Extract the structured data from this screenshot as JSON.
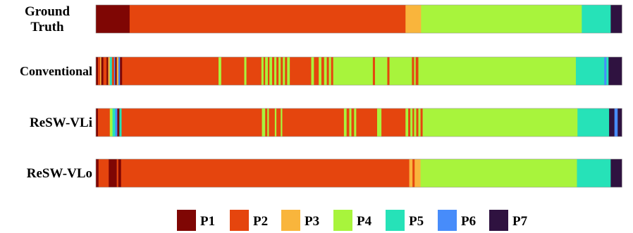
{
  "chart_data": {
    "type": "bar",
    "title": "",
    "xlabel": "",
    "ylabel": "",
    "xlim": [
      0,
      100
    ],
    "units": "percent of sequence",
    "legend": {
      "placement": "bottom-center",
      "entries": [
        {
          "label": "P1",
          "color": "#7f0604"
        },
        {
          "label": "P2",
          "color": "#e5450e"
        },
        {
          "label": "P3",
          "color": "#f9b53c"
        },
        {
          "label": "P4",
          "color": "#a8f43c"
        },
        {
          "label": "P5",
          "color": "#26e2b8"
        },
        {
          "label": "P6",
          "color": "#478cfa"
        },
        {
          "label": "P7",
          "color": "#2f1240"
        }
      ]
    },
    "rows": [
      {
        "label_lines": [
          "Ground",
          "Truth"
        ],
        "segments": [
          [
            0,
            6.3,
            "P1"
          ],
          [
            6.3,
            57.8,
            "P2"
          ],
          [
            57.8,
            60.7,
            "P3"
          ],
          [
            60.7,
            90.7,
            "P4"
          ],
          [
            90.7,
            96.1,
            "P5"
          ],
          [
            96.1,
            98.2,
            "P7"
          ]
        ]
      },
      {
        "label_lines": [
          "Conventional"
        ],
        "segments": [
          [
            0,
            0.4,
            "P1"
          ],
          [
            0.4,
            0.8,
            "P2"
          ],
          [
            0.8,
            1.0,
            "P3"
          ],
          [
            1.0,
            1.4,
            "P1"
          ],
          [
            1.4,
            2.0,
            "P2"
          ],
          [
            2.0,
            2.3,
            "P1"
          ],
          [
            2.3,
            2.6,
            "P3"
          ],
          [
            2.6,
            3.0,
            "P5"
          ],
          [
            3.0,
            3.4,
            "P2"
          ],
          [
            3.4,
            3.6,
            "P6"
          ],
          [
            3.6,
            3.9,
            "P1"
          ],
          [
            3.9,
            4.2,
            "P3"
          ],
          [
            4.2,
            4.5,
            "P6"
          ],
          [
            4.5,
            4.9,
            "P1"
          ],
          [
            4.9,
            22.9,
            "P2"
          ],
          [
            22.9,
            23.4,
            "P4"
          ],
          [
            23.4,
            27.7,
            "P2"
          ],
          [
            27.7,
            28.1,
            "P4"
          ],
          [
            28.1,
            30.9,
            "P2"
          ],
          [
            30.9,
            31.3,
            "P4"
          ],
          [
            31.3,
            31.6,
            "P2"
          ],
          [
            31.6,
            32.1,
            "P4"
          ],
          [
            32.1,
            32.4,
            "P2"
          ],
          [
            32.4,
            32.9,
            "P4"
          ],
          [
            32.9,
            33.3,
            "P2"
          ],
          [
            33.3,
            33.7,
            "P4"
          ],
          [
            33.7,
            34.1,
            "P2"
          ],
          [
            34.1,
            34.5,
            "P4"
          ],
          [
            34.5,
            34.9,
            "P2"
          ],
          [
            34.9,
            35.3,
            "P4"
          ],
          [
            35.3,
            35.7,
            "P2"
          ],
          [
            35.7,
            36.2,
            "P4"
          ],
          [
            36.2,
            40.2,
            "P2"
          ],
          [
            40.2,
            40.7,
            "P4"
          ],
          [
            40.7,
            41.6,
            "P2"
          ],
          [
            41.6,
            42.1,
            "P4"
          ],
          [
            42.1,
            42.6,
            "P2"
          ],
          [
            42.6,
            43.1,
            "P4"
          ],
          [
            43.1,
            43.5,
            "P2"
          ],
          [
            43.5,
            43.9,
            "P4"
          ],
          [
            43.9,
            44.3,
            "P2"
          ],
          [
            44.3,
            51.7,
            "P4"
          ],
          [
            51.7,
            52.1,
            "P2"
          ],
          [
            52.1,
            54.4,
            "P4"
          ],
          [
            54.4,
            54.8,
            "P2"
          ],
          [
            54.8,
            59.0,
            "P4"
          ],
          [
            59.0,
            59.4,
            "P2"
          ],
          [
            59.4,
            59.7,
            "P4"
          ],
          [
            59.7,
            60.2,
            "P2"
          ],
          [
            60.2,
            89.6,
            "P4"
          ],
          [
            89.6,
            94.9,
            "P5"
          ],
          [
            94.9,
            95.3,
            "P6"
          ],
          [
            95.3,
            95.7,
            "P5"
          ],
          [
            95.7,
            98.2,
            "P7"
          ]
        ]
      },
      {
        "label_lines": [
          "ReSW-VLi"
        ],
        "segments": [
          [
            0,
            0.4,
            "P1"
          ],
          [
            0.4,
            2.6,
            "P2"
          ],
          [
            2.6,
            3.1,
            "P4"
          ],
          [
            3.1,
            3.6,
            "P5"
          ],
          [
            3.6,
            4.0,
            "P6"
          ],
          [
            4.0,
            4.4,
            "P1"
          ],
          [
            4.4,
            4.8,
            "P5"
          ],
          [
            4.8,
            31.0,
            "P2"
          ],
          [
            31.0,
            31.6,
            "P4"
          ],
          [
            31.6,
            32.0,
            "P2"
          ],
          [
            32.0,
            32.3,
            "P4"
          ],
          [
            32.3,
            33.4,
            "P2"
          ],
          [
            33.4,
            33.7,
            "P4"
          ],
          [
            33.7,
            34.5,
            "P2"
          ],
          [
            34.5,
            34.8,
            "P4"
          ],
          [
            34.8,
            46.3,
            "P2"
          ],
          [
            46.3,
            46.8,
            "P4"
          ],
          [
            46.8,
            47.3,
            "P2"
          ],
          [
            47.3,
            47.7,
            "P4"
          ],
          [
            47.7,
            48.2,
            "P2"
          ],
          [
            48.2,
            48.6,
            "P4"
          ],
          [
            48.6,
            52.5,
            "P2"
          ],
          [
            52.5,
            53.3,
            "P4"
          ],
          [
            53.3,
            57.8,
            "P2"
          ],
          [
            57.8,
            58.3,
            "P4"
          ],
          [
            58.3,
            58.7,
            "P2"
          ],
          [
            58.7,
            59.1,
            "P4"
          ],
          [
            59.1,
            59.4,
            "P2"
          ],
          [
            59.4,
            59.8,
            "P4"
          ],
          [
            59.8,
            60.2,
            "P2"
          ],
          [
            60.2,
            60.6,
            "P4"
          ],
          [
            60.6,
            61.0,
            "P2"
          ],
          [
            61.0,
            89.9,
            "P4"
          ],
          [
            89.9,
            95.8,
            "P5"
          ],
          [
            95.8,
            96.8,
            "P7"
          ],
          [
            96.8,
            97.4,
            "P6"
          ],
          [
            97.4,
            98.2,
            "P7"
          ]
        ]
      },
      {
        "label_lines": [
          "ReSW-VLo"
        ],
        "segments": [
          [
            0,
            0.5,
            "P1"
          ],
          [
            0.5,
            2.4,
            "P2"
          ],
          [
            2.4,
            3.9,
            "P1"
          ],
          [
            3.9,
            4.2,
            "P2"
          ],
          [
            4.2,
            4.7,
            "P1"
          ],
          [
            4.7,
            58.5,
            "P2"
          ],
          [
            58.5,
            59.1,
            "P3"
          ],
          [
            59.1,
            59.5,
            "P2"
          ],
          [
            59.5,
            60.6,
            "P3"
          ],
          [
            60.6,
            89.8,
            "P4"
          ],
          [
            89.8,
            96.1,
            "P5"
          ],
          [
            96.1,
            98.2,
            "P7"
          ]
        ]
      }
    ]
  }
}
